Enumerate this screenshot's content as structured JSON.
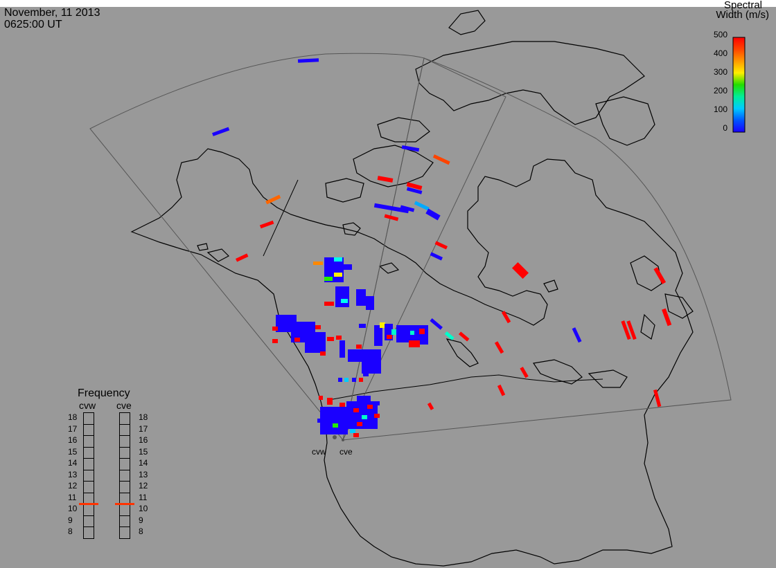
{
  "header": {
    "date": "November, 11 2013",
    "time": "0625:00 UT"
  },
  "colorbar": {
    "title_line1": "Spectral",
    "title_line2": "Width (m/s)",
    "ticks": [
      "500",
      "400",
      "300",
      "200",
      "100",
      "0"
    ],
    "colors": [
      "#ff0000",
      "#ff4400",
      "#ff9900",
      "#ffee00",
      "#22dd00",
      "#00ee99",
      "#00ccff",
      "#0055ff",
      "#1a00ff"
    ]
  },
  "frequency": {
    "title": "Frequency",
    "radars": [
      "cvw",
      "cve"
    ],
    "levels": [
      "18",
      "17",
      "16",
      "15",
      "14",
      "13",
      "12",
      "11",
      "10",
      "9",
      "8"
    ],
    "selected_mhz": [
      10.5,
      10.5
    ],
    "marker_color": "#ff3300"
  },
  "sites": {
    "labels": [
      "cvw",
      "cve"
    ]
  }
}
